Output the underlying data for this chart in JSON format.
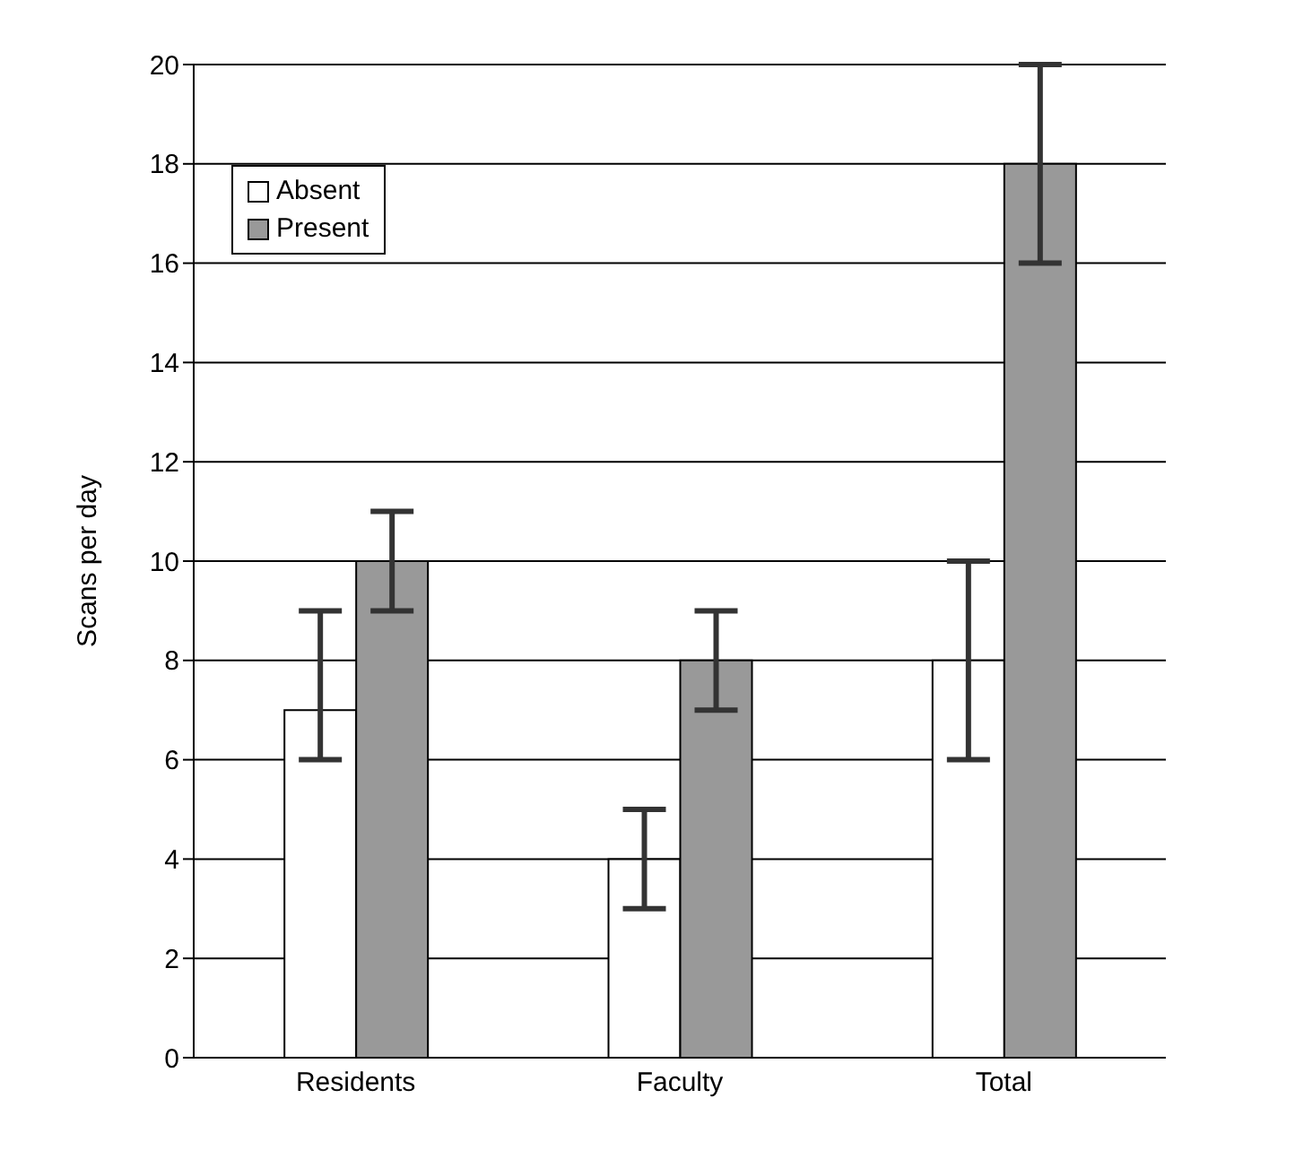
{
  "chart_data": {
    "type": "bar",
    "ylabel": "Scans per day",
    "categories": [
      "Residents",
      "Faculty",
      "Total"
    ],
    "series": [
      {
        "name": "Absent",
        "color": "#ffffff",
        "values": [
          7,
          4,
          8
        ],
        "errors": [
          [
            6,
            9
          ],
          1,
          2
        ]
      },
      {
        "name": "Present",
        "color": "#999999",
        "values": [
          10,
          8,
          18
        ],
        "errors": [
          1,
          1,
          2
        ]
      }
    ],
    "ylim": [
      0,
      20
    ],
    "yticks": [
      0,
      2,
      4,
      6,
      8,
      10,
      12,
      14,
      16,
      18,
      20
    ],
    "grid": "y",
    "legend": "top left"
  }
}
